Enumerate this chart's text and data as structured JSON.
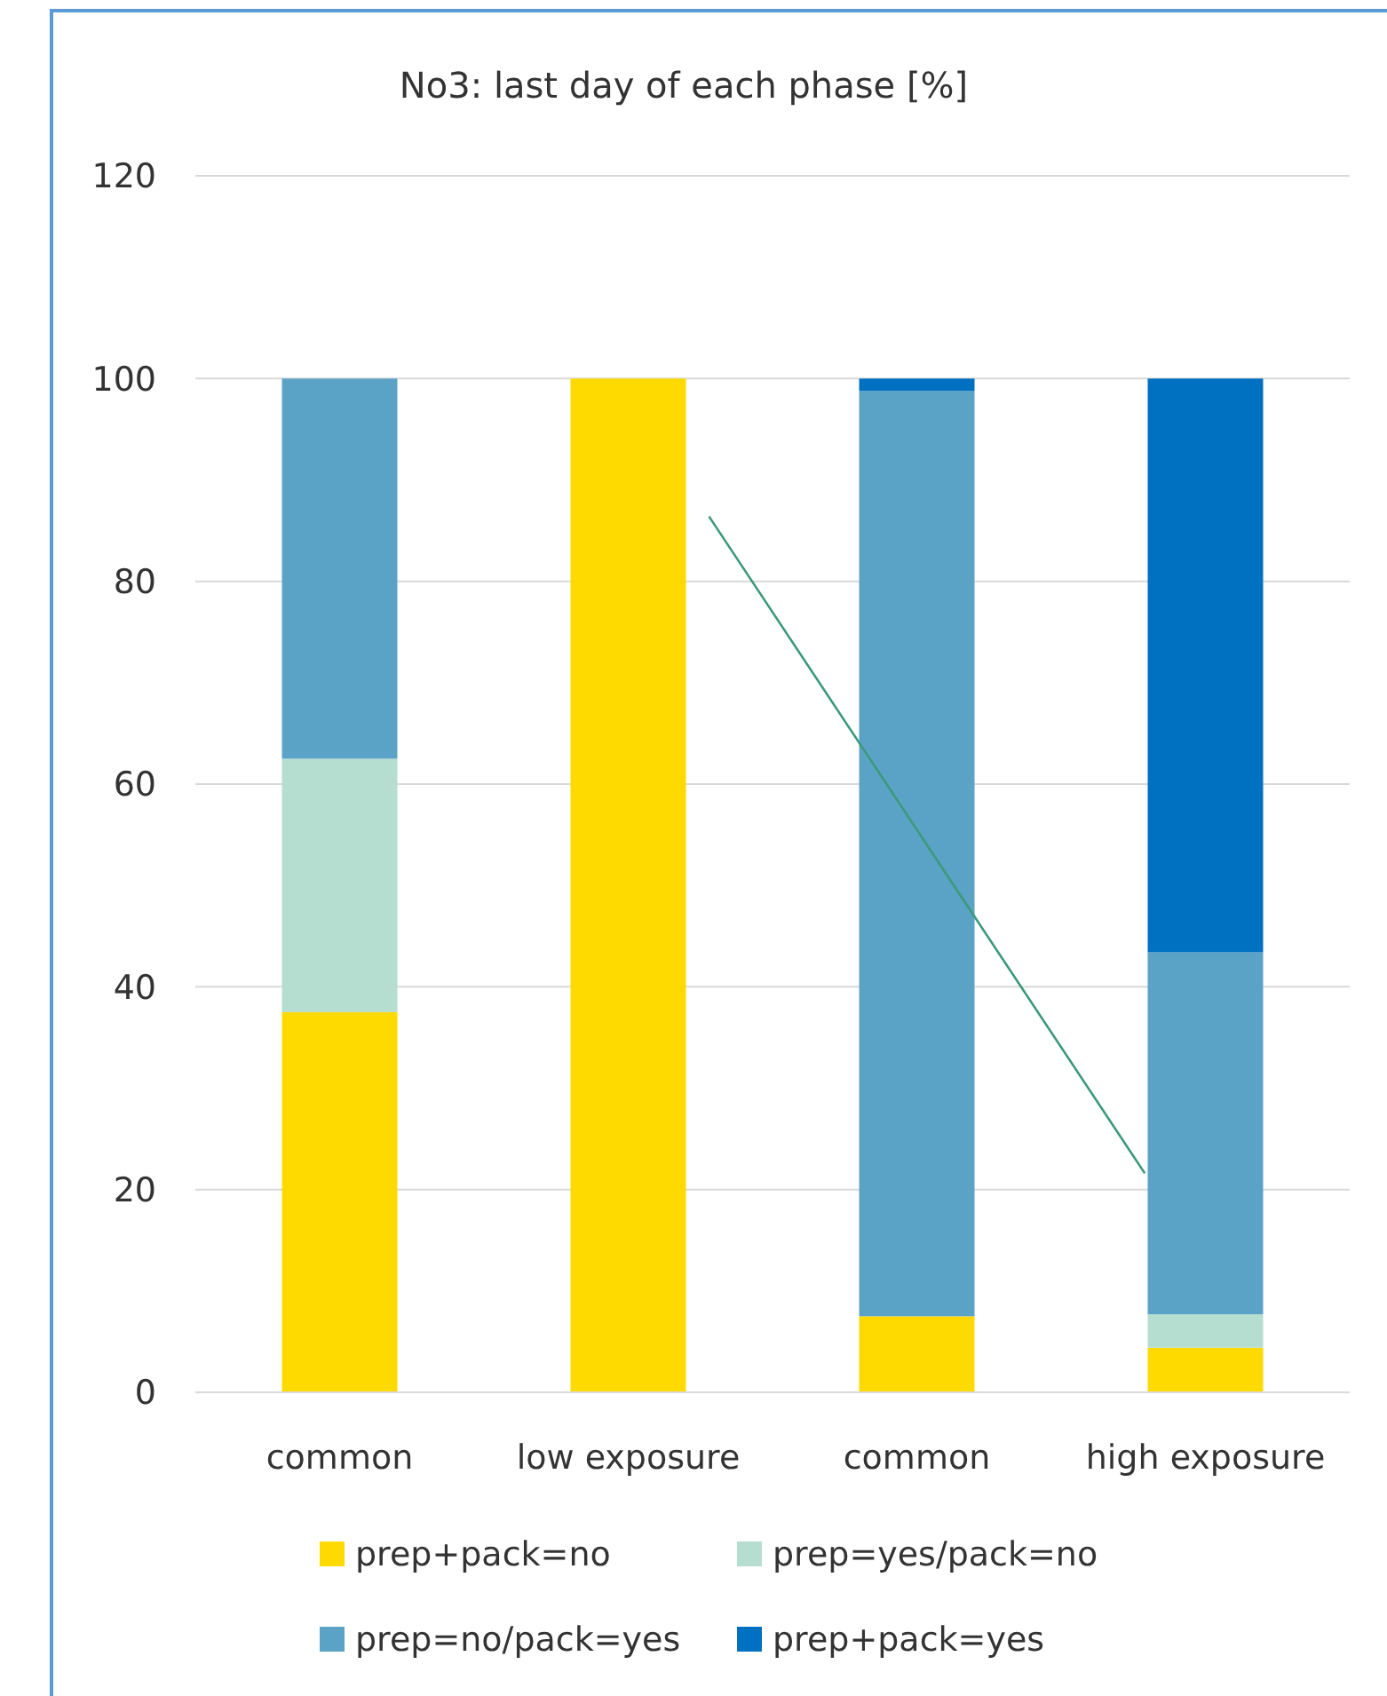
{
  "chart_data": {
    "type": "bar",
    "title": "No3: last day of each phase [%]",
    "categories": [
      "common",
      "low exposure",
      "common",
      "high exposure"
    ],
    "stacked": true,
    "ylim": [
      0,
      120
    ],
    "yticks": [
      0,
      20,
      40,
      60,
      80,
      100,
      120
    ],
    "grid": "y",
    "legend": "bottom",
    "series": [
      {
        "name": "prep+pack=no",
        "color": "#ffda00",
        "values": [
          37.5,
          100,
          7.5,
          4.4
        ]
      },
      {
        "name": "prep=yes/pack=no",
        "color": "#b5ddd0",
        "values": [
          25,
          0,
          0,
          3.3
        ]
      },
      {
        "name": "prep=no/pack=yes",
        "color": "#5ba3c6",
        "values": [
          37.5,
          0,
          91.3,
          35.7
        ]
      },
      {
        "name": "prep+pack=yes",
        "color": "#0070c0",
        "values": [
          0,
          0,
          1.2,
          56.6
        ]
      }
    ]
  }
}
